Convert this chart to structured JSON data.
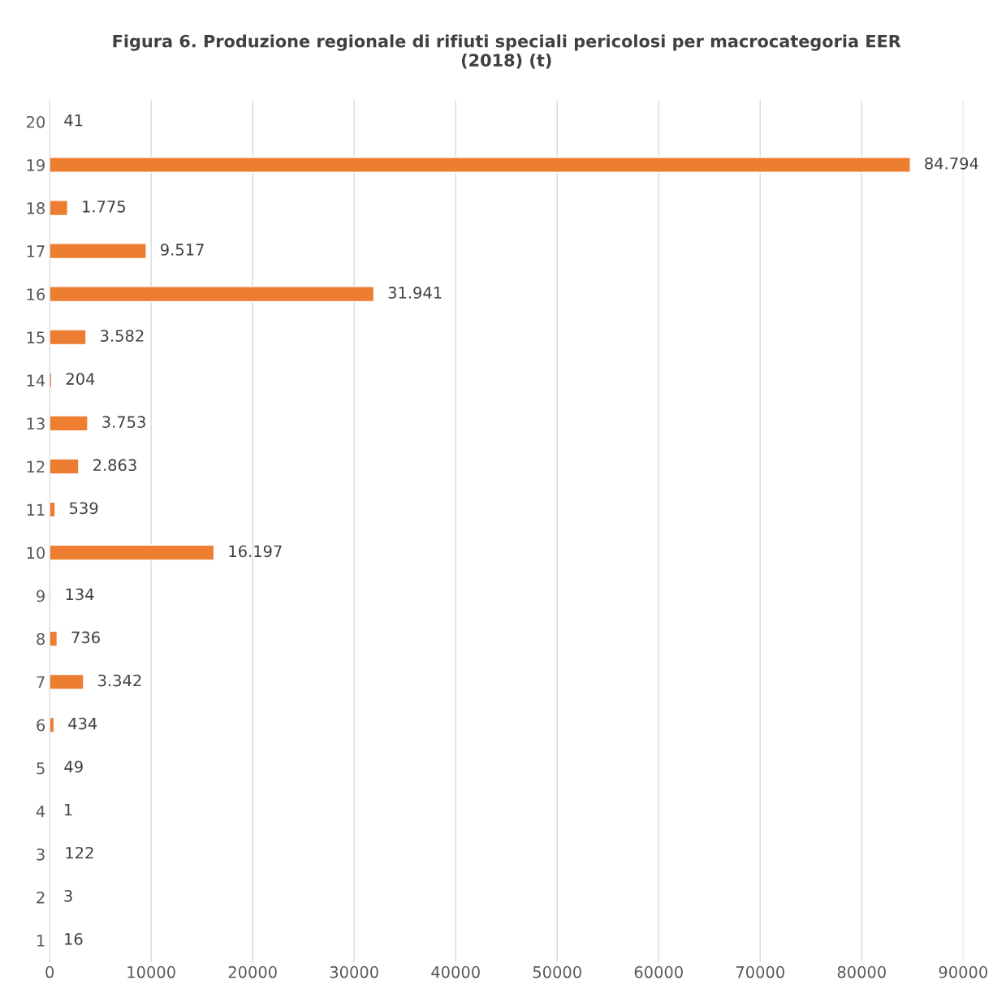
{
  "chart_data": {
    "type": "bar",
    "orientation": "horizontal",
    "title": "Figura 6. Produzione regionale di rifiuti speciali pericolosi per macrocategoria EER\n(2018) (t)",
    "categories": [
      "20",
      "19",
      "18",
      "17",
      "16",
      "15",
      "14",
      "13",
      "12",
      "11",
      "10",
      "9",
      "8",
      "7",
      "6",
      "5",
      "4",
      "3",
      "2",
      "1"
    ],
    "values": [
      41,
      84794,
      1775,
      9517,
      31941,
      3582,
      204,
      3753,
      2863,
      539,
      16197,
      134,
      736,
      3342,
      434,
      49,
      1,
      122,
      3,
      16
    ],
    "value_labels": [
      "41",
      "84.794",
      "1.775",
      "9.517",
      "31.941",
      "3.582",
      "204",
      "3.753",
      "2.863",
      "539",
      "16.197",
      "134",
      "736",
      "3.342",
      "434",
      "49",
      "1",
      "122",
      "3",
      "16"
    ],
    "color": "#ed7d31",
    "xlim": [
      0,
      90000
    ],
    "xticks": [
      0,
      10000,
      20000,
      30000,
      40000,
      50000,
      60000,
      70000,
      80000,
      90000
    ],
    "grid": "x",
    "legend": false
  }
}
